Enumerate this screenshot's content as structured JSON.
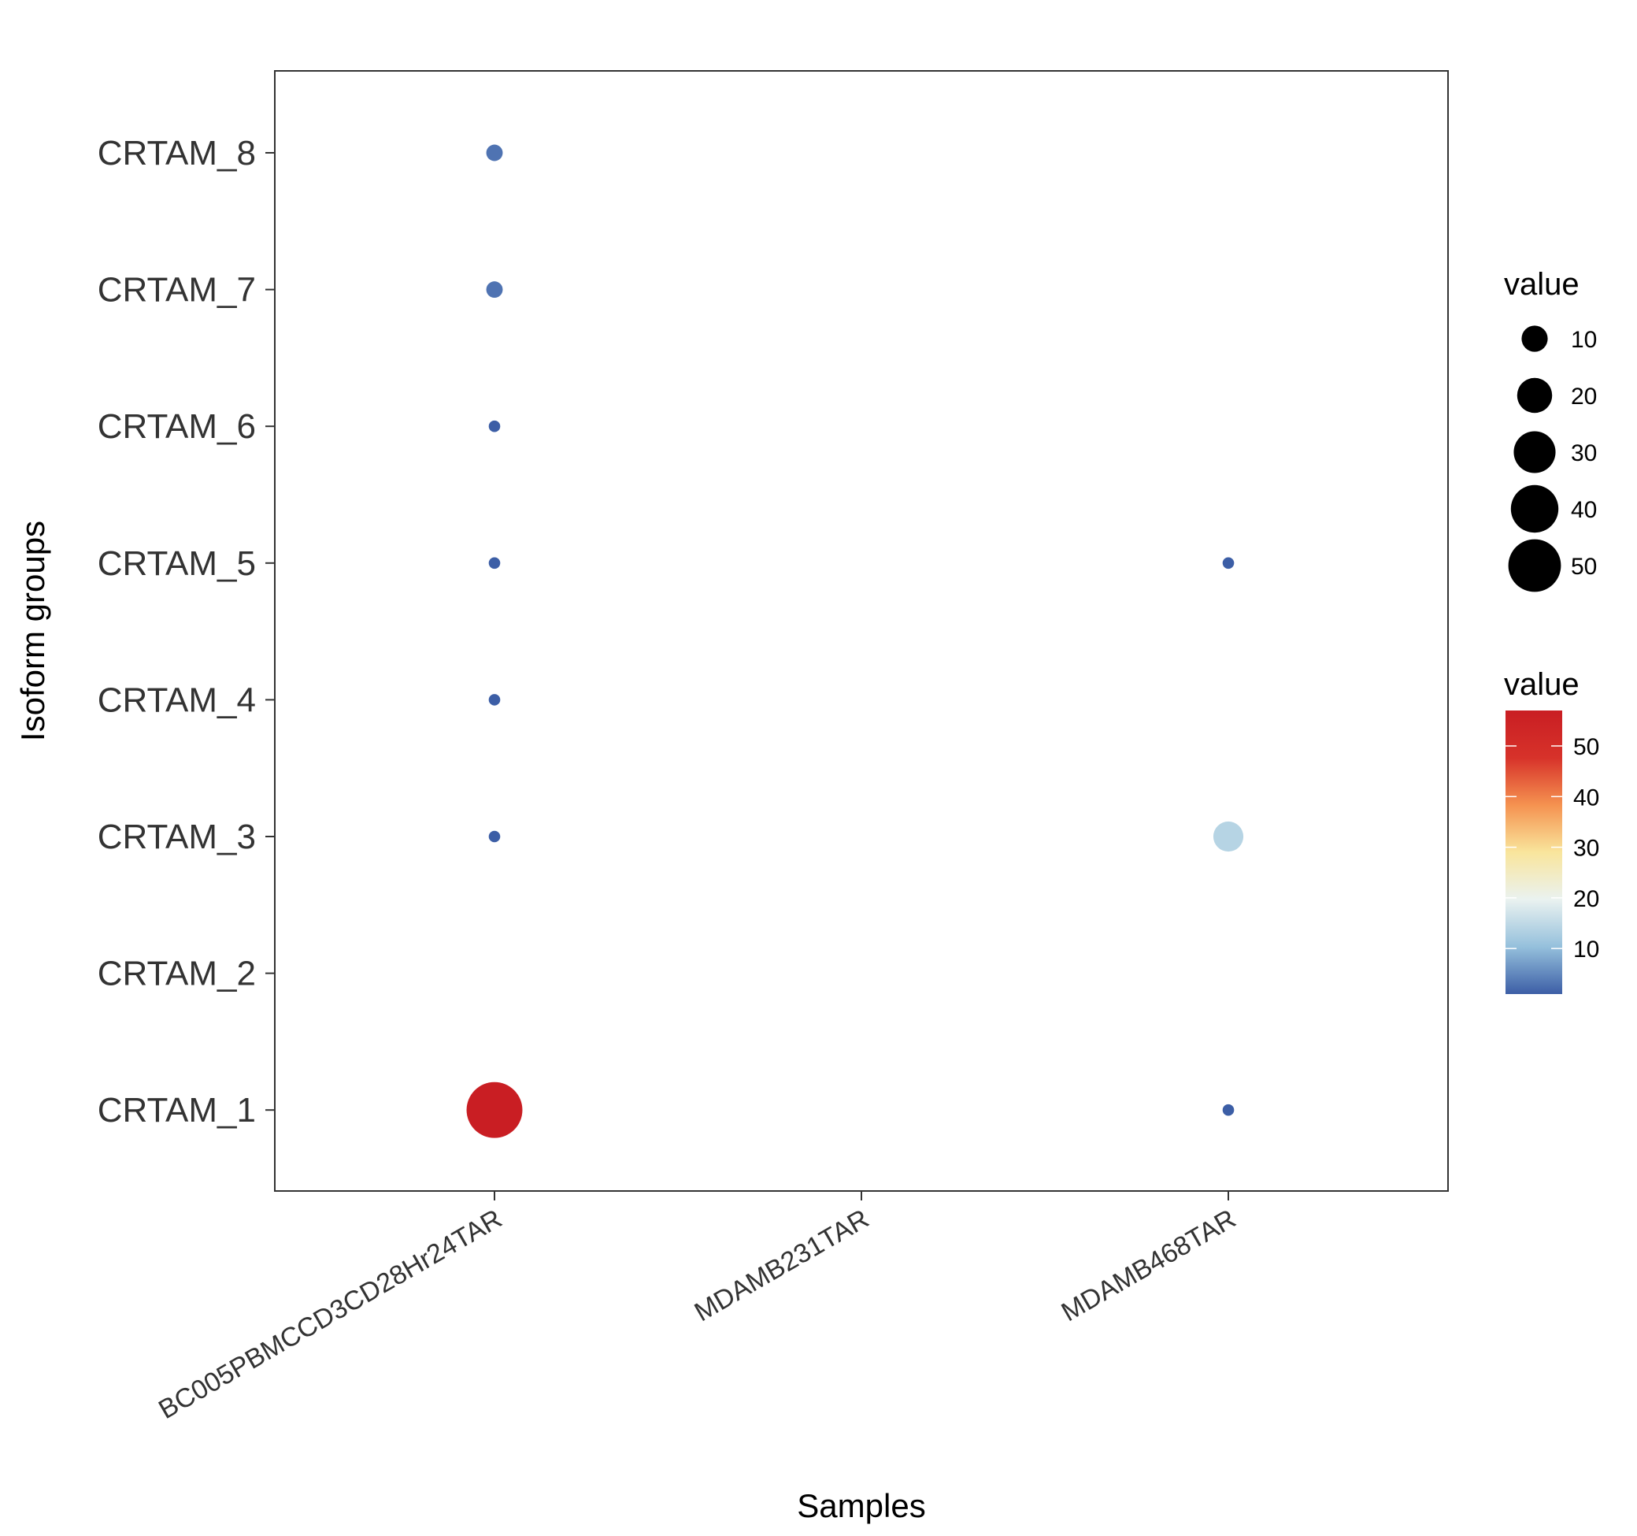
{
  "chart_data": {
    "type": "scatter",
    "xlabel": "Samples",
    "ylabel": "Isoform groups",
    "x_categories": [
      "BC005PBMCCD3CD28Hr24TAR",
      "MDAMB231TAR",
      "MDAMB468TAR"
    ],
    "y_categories": [
      "CRTAM_1",
      "CRTAM_2",
      "CRTAM_3",
      "CRTAM_4",
      "CRTAM_5",
      "CRTAM_6",
      "CRTAM_7",
      "CRTAM_8"
    ],
    "points": [
      {
        "x": "BC005PBMCCD3CD28Hr24TAR",
        "y": "CRTAM_8",
        "value": 3
      },
      {
        "x": "BC005PBMCCD3CD28Hr24TAR",
        "y": "CRTAM_7",
        "value": 3
      },
      {
        "x": "BC005PBMCCD3CD28Hr24TAR",
        "y": "CRTAM_6",
        "value": 1
      },
      {
        "x": "BC005PBMCCD3CD28Hr24TAR",
        "y": "CRTAM_5",
        "value": 1
      },
      {
        "x": "BC005PBMCCD3CD28Hr24TAR",
        "y": "CRTAM_4",
        "value": 1
      },
      {
        "x": "BC005PBMCCD3CD28Hr24TAR",
        "y": "CRTAM_3",
        "value": 1
      },
      {
        "x": "BC005PBMCCD3CD28Hr24TAR",
        "y": "CRTAM_1",
        "value": 57
      },
      {
        "x": "MDAMB468TAR",
        "y": "CRTAM_5",
        "value": 1
      },
      {
        "x": "MDAMB468TAR",
        "y": "CRTAM_3",
        "value": 14
      },
      {
        "x": "MDAMB468TAR",
        "y": "CRTAM_1",
        "value": 1
      }
    ],
    "size_legend": {
      "title": "value",
      "breaks": [
        10,
        20,
        30,
        40,
        50
      ]
    },
    "color_legend": {
      "title": "value",
      "breaks": [
        10,
        20,
        30,
        40,
        50
      ],
      "range": [
        1,
        57
      ],
      "colors": [
        "#3c5ea6",
        "#95c0dc",
        "#eaf2f0",
        "#f9e59c",
        "#f59250",
        "#d7322a",
        "#c91e23"
      ]
    },
    "legend_position": "right",
    "grid": false
  }
}
